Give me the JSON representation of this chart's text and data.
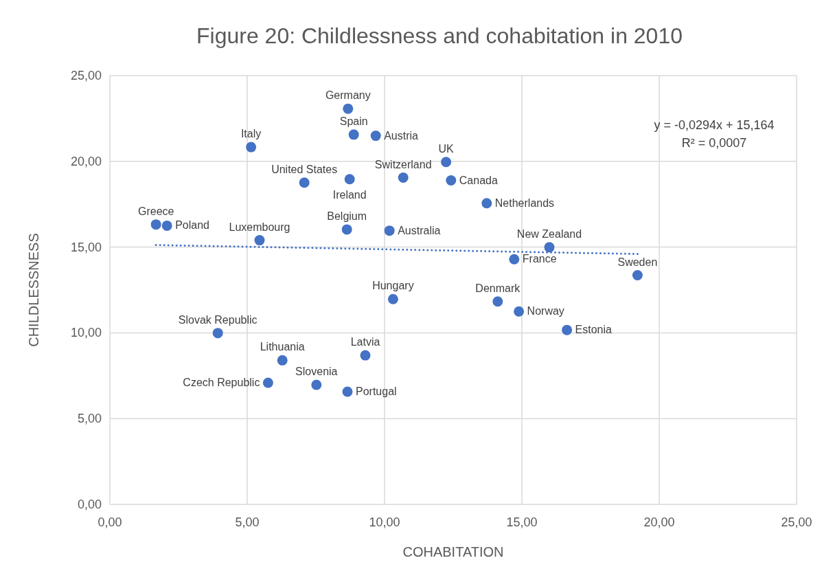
{
  "chart_data": {
    "type": "scatter",
    "title": "Figure 20: Childlessness and cohabitation in 2010",
    "xlabel": "COHABITATION",
    "ylabel": "CHILDLESSNESS",
    "xlim": [
      0,
      25
    ],
    "xticks": [
      {
        "value": 0,
        "label": "0,00"
      },
      {
        "value": 5,
        "label": "5,00"
      },
      {
        "value": 10,
        "label": "10,00"
      },
      {
        "value": 15,
        "label": "15,00"
      },
      {
        "value": 20,
        "label": "20,00"
      },
      {
        "value": 25,
        "label": "25,00"
      }
    ],
    "ylim": [
      0,
      25
    ],
    "yticks": [
      {
        "value": 0,
        "label": "0,00"
      },
      {
        "value": 5,
        "label": "5,00"
      },
      {
        "value": 10,
        "label": "10,00"
      },
      {
        "value": 15,
        "label": "15,00"
      },
      {
        "value": 20,
        "label": "20,00"
      },
      {
        "value": 25,
        "label": "25,00"
      }
    ],
    "grid": true,
    "series": [
      {
        "color": "#4472c4",
        "marker": "circle",
        "x": [
          8.67,
          8.88,
          9.68,
          5.14,
          7.08,
          8.73,
          10.68,
          12.24,
          12.42,
          13.72,
          1.68,
          2.08,
          8.63,
          10.18,
          5.45,
          16.0,
          14.72,
          19.21,
          10.31,
          14.12,
          14.89,
          16.64,
          3.93,
          9.3,
          6.28,
          5.76,
          7.52,
          8.65
        ],
        "values": [
          23.07,
          21.56,
          21.49,
          20.83,
          18.76,
          18.96,
          19.05,
          19.96,
          18.89,
          17.56,
          16.32,
          16.25,
          16.03,
          15.96,
          15.4,
          14.99,
          14.29,
          13.36,
          11.97,
          11.83,
          11.25,
          10.17,
          9.99,
          8.69,
          8.4,
          7.09,
          6.97,
          6.57
        ],
        "value_labels": [
          "Germany",
          "Spain",
          "Austria",
          "Italy",
          "United States",
          "Ireland",
          "Switzerland",
          "UK",
          "Canada",
          "Netherlands",
          "Greece",
          "Poland",
          "Belgium",
          "Australia",
          "Luxembourg",
          "New Zealand",
          "France",
          "Sweden",
          "Hungary",
          "Denmark",
          "Norway",
          "Estonia",
          "Slovak Republic",
          "Latvia",
          "Lithuania",
          "Czech Republic",
          "Slovenia",
          "Portugal"
        ]
      },
      {
        "type": "line",
        "color": "#4472c4",
        "marker": "none",
        "line_style": "dotted",
        "x": [
          1.68,
          19.21
        ],
        "values": [
          15.12,
          14.6
        ]
      }
    ],
    "annotations": [
      "y = -0,0294x + 15,164",
      "R² = 0,0007"
    ]
  }
}
